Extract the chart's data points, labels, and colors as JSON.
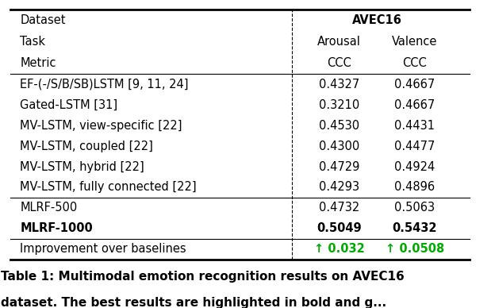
{
  "header_row0": [
    "Dataset",
    "AVEC16"
  ],
  "header_row1": [
    "Task",
    "Arousal",
    "Valence"
  ],
  "header_row2": [
    "Metric",
    "CCC",
    "CCC"
  ],
  "rows": [
    [
      "EF-(-/S/B/SB)LSTM [9, 11, 24]",
      "0.4327",
      "0.4667"
    ],
    [
      "Gated-LSTM [31]",
      "0.3210",
      "0.4667"
    ],
    [
      "MV-LSTM, view-specific [22]",
      "0.4530",
      "0.4431"
    ],
    [
      "MV-LSTM, coupled [22]",
      "0.4300",
      "0.4477"
    ],
    [
      "MV-LSTM, hybrid [22]",
      "0.4729",
      "0.4924"
    ],
    [
      "MV-LSTM, fully connected [22]",
      "0.4293",
      "0.4896"
    ],
    [
      "MLRF-500",
      "0.4732",
      "0.5063"
    ],
    [
      "MLRF-1000",
      "0.5049",
      "0.5432"
    ]
  ],
  "improvement_row": [
    "Improvement over baselines",
    "↑ 0.032",
    "↑ 0.0508"
  ],
  "bold_data_rows": [
    7
  ],
  "background_color": "#ffffff",
  "text_color": "#000000",
  "green_color": "#00aa00",
  "font_size": 10.5,
  "caption_font_size": 11,
  "caption_line1": "Table 1: Multimodal emotion recognition results on AVEC16",
  "caption_line2": "dataset. The best results are highlighted in bold and g..."
}
